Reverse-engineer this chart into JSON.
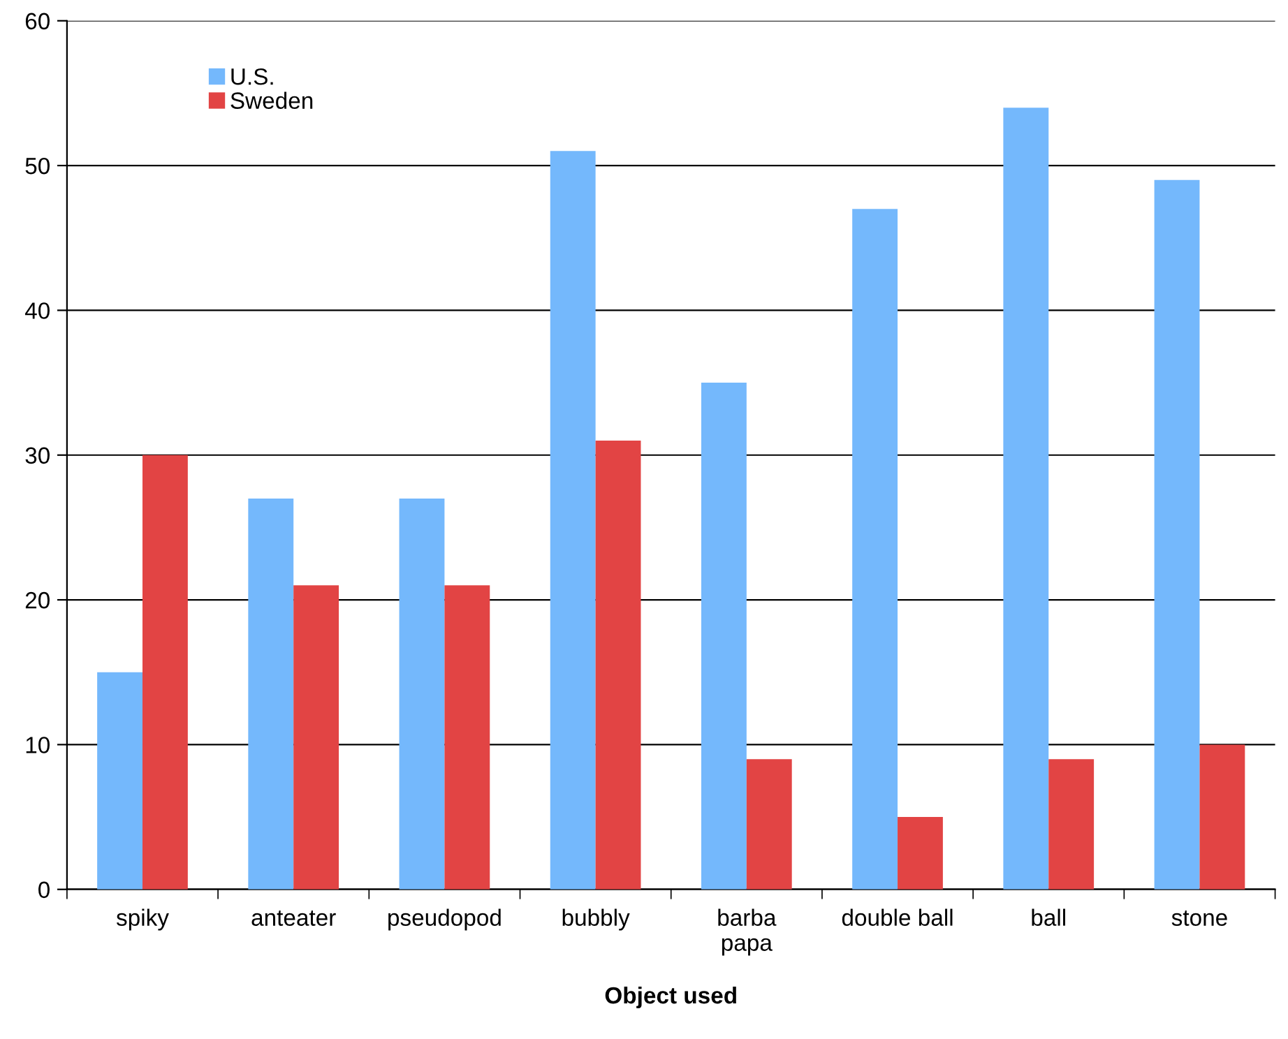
{
  "chart_data": {
    "type": "bar",
    "xlabel": "Object used",
    "categories": [
      "spiky",
      "anteater",
      "pseudopod",
      "bubbly",
      "barba\npapa",
      "double ball",
      "ball",
      "stone"
    ],
    "series": [
      {
        "name": "U.S.",
        "color": "#74b8fc",
        "values": [
          15,
          27,
          27,
          51,
          35,
          47,
          54,
          49
        ]
      },
      {
        "name": "Sweden",
        "color": "#e24444",
        "values": [
          30,
          21,
          21,
          31,
          9,
          5,
          9,
          10
        ]
      }
    ],
    "ylim": [
      0,
      60
    ],
    "yticks": [
      0,
      10,
      20,
      30,
      40,
      50,
      60
    ],
    "grid": "y",
    "legend": "top left"
  }
}
